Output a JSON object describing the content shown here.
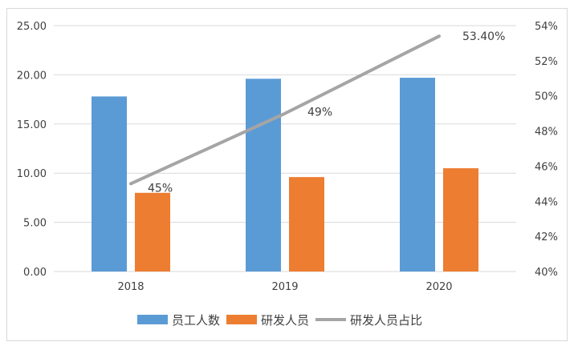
{
  "chart_data": {
    "type": "bar",
    "categories": [
      "2018",
      "2019",
      "2020"
    ],
    "series": [
      {
        "name": "员工人数",
        "kind": "bar",
        "axis": "left",
        "color": "#5b9bd5",
        "values": [
          17.8,
          19.6,
          19.7
        ]
      },
      {
        "name": "研发人员",
        "kind": "bar",
        "axis": "left",
        "color": "#ed7d31",
        "values": [
          8.0,
          9.6,
          10.5
        ]
      },
      {
        "name": "研发人员占比",
        "kind": "line",
        "axis": "right",
        "color": "#a5a5a5",
        "values": [
          45,
          49,
          53.4
        ],
        "data_labels": [
          "45%",
          "49%",
          "53.40%"
        ]
      }
    ],
    "y_left": {
      "min": 0,
      "max": 25,
      "ticks": [
        "0.00",
        "5.00",
        "10.00",
        "15.00",
        "20.00",
        "25.00"
      ]
    },
    "y_right": {
      "min": 40,
      "max": 54,
      "ticks": [
        "40%",
        "42%",
        "44%",
        "46%",
        "48%",
        "50%",
        "52%",
        "54%"
      ]
    },
    "grid": true,
    "legend_position": "bottom"
  }
}
